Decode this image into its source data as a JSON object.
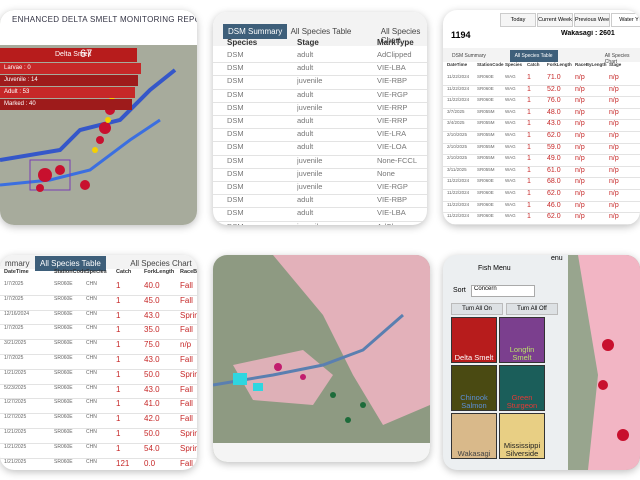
{
  "edsm_map": {
    "title": "ENHANCED DELTA SMELT MONITORING REPORT (EDSM",
    "species": "Delta Smelt",
    "count": "67",
    "stages": [
      "Larvae : 0",
      "Juvenile : 14",
      "Adult : 53",
      "Marked : 40"
    ]
  },
  "dsm_summary": {
    "tabs": [
      "DSM Summary",
      "All Species Table",
      "All Species Chart"
    ],
    "headers": [
      "Species",
      "Stage",
      "MarkType"
    ],
    "rows": [
      [
        "DSM",
        "adult",
        "AdClipped"
      ],
      [
        "DSM",
        "adult",
        "VIE-LBA"
      ],
      [
        "DSM",
        "juvenile",
        "VIE-RBP"
      ],
      [
        "DSM",
        "adult",
        "VIE-RGP"
      ],
      [
        "DSM",
        "juvenile",
        "VIE-RRP"
      ],
      [
        "DSM",
        "adult",
        "VIE-RRP"
      ],
      [
        "DSM",
        "adult",
        "VIE-LRA"
      ],
      [
        "DSM",
        "adult",
        "VIE-LOA"
      ],
      [
        "DSM",
        "juvenile",
        "None-FCCL"
      ],
      [
        "DSM",
        "juvenile",
        "None"
      ],
      [
        "DSM",
        "juvenile",
        "VIE-RGP"
      ],
      [
        "DSM",
        "adult",
        "VIE-RBP"
      ],
      [
        "DSM",
        "adult",
        "VIE-LBA"
      ],
      [
        "DSM",
        "juvenile",
        "AdCl"
      ]
    ]
  },
  "catch_table": {
    "buttons": [
      "Today",
      "Current Week",
      "Previous Week",
      "Water Y"
    ],
    "total": "1194",
    "wakasagi": "Wakasagi : 2601",
    "tabs": [
      "DSM Summary",
      "All Species Table",
      "All Species Chart"
    ],
    "headers": [
      "DateTime",
      "StationCode",
      "Species",
      "Catch",
      "ForkLength",
      "RaceByLength",
      "Stage"
    ],
    "rows": [
      [
        "11/22/2024",
        "SR060E",
        "WAG",
        "1",
        "71.0",
        "n/p",
        "n/p"
      ],
      [
        "11/22/2024",
        "SR060E",
        "WAG",
        "1",
        "52.0",
        "n/p",
        "n/p"
      ],
      [
        "11/22/2024",
        "SR060E",
        "WAG",
        "1",
        "76.0",
        "n/p",
        "n/p"
      ],
      [
        "3/7/2025",
        "SR055M",
        "WAG",
        "1",
        "48.0",
        "n/p",
        "n/p"
      ],
      [
        "3/4/2025",
        "SR055M",
        "WAG",
        "1",
        "43.0",
        "n/p",
        "n/p"
      ],
      [
        "2/10/2025",
        "SR055M",
        "WAG",
        "1",
        "62.0",
        "n/p",
        "n/p"
      ],
      [
        "2/10/2025",
        "SR055M",
        "WAG",
        "1",
        "59.0",
        "n/p",
        "n/p"
      ],
      [
        "2/10/2025",
        "SR055M",
        "WAG",
        "1",
        "49.0",
        "n/p",
        "n/p"
      ],
      [
        "3/11/2025",
        "SR055M",
        "WAG",
        "1",
        "61.0",
        "n/p",
        "n/p"
      ],
      [
        "11/22/2024",
        "SR060E",
        "WAG",
        "1",
        "68.0",
        "n/p",
        "n/p"
      ],
      [
        "11/22/2024",
        "SR060E",
        "WAG",
        "1",
        "62.0",
        "n/p",
        "n/p"
      ],
      [
        "11/22/2024",
        "SR060E",
        "WAG",
        "1",
        "46.0",
        "n/p",
        "n/p"
      ],
      [
        "11/22/2024",
        "SR060E",
        "WAG",
        "1",
        "62.0",
        "n/p",
        "n/p"
      ]
    ]
  },
  "species_table": {
    "tabs": [
      "mmary",
      "All Species Table",
      "All Species Chart"
    ],
    "headers": [
      "DateTime",
      "StationCode",
      "Species",
      "Catch",
      "ForkLength",
      "RaceByL"
    ],
    "rows": [
      [
        "1/7/2025",
        "SR060E",
        "CHN",
        "1",
        "40.0",
        "Fall"
      ],
      [
        "1/7/2025",
        "SR060E",
        "CHN",
        "1",
        "45.0",
        "Fall"
      ],
      [
        "12/16/2024",
        "SR060E",
        "CHN",
        "1",
        "43.0",
        "Spring"
      ],
      [
        "1/7/2025",
        "SR060E",
        "CHN",
        "1",
        "35.0",
        "Fall"
      ],
      [
        "3/21/2025",
        "SR060E",
        "CHN",
        "1",
        "75.0",
        "n/p"
      ],
      [
        "1/7/2025",
        "SR060E",
        "CHN",
        "1",
        "43.0",
        "Fall"
      ],
      [
        "1/21/2025",
        "SR060E",
        "CHN",
        "1",
        "50.0",
        "Spring"
      ],
      [
        "5/23/2025",
        "SR060E",
        "CHN",
        "1",
        "43.0",
        "Fall"
      ],
      [
        "1/27/2025",
        "SR060E",
        "CHN",
        "1",
        "41.0",
        "Fall"
      ],
      [
        "1/27/2025",
        "SR060E",
        "CHN",
        "1",
        "42.0",
        "Fall"
      ],
      [
        "1/21/2025",
        "SR060E",
        "CHN",
        "1",
        "50.0",
        "Spring"
      ],
      [
        "1/21/2025",
        "SR060E",
        "CHN",
        "1",
        "54.0",
        "Spring"
      ],
      [
        "1/21/2025",
        "SR060E",
        "CHN",
        "121",
        "0.0",
        "Fall"
      ]
    ]
  },
  "fish_menu": {
    "menu": "enu",
    "title": "Fish Menu",
    "sort_label": "Sort",
    "sort_value": "Concern",
    "buttons": [
      "Turn All On",
      "Turn All Off"
    ],
    "fish": [
      "Delta Smelt",
      "Longfin Smelt",
      "Chinook Salmon",
      "Green Sturgeon",
      "Wakasagi",
      "Mississippi Silverside"
    ]
  }
}
